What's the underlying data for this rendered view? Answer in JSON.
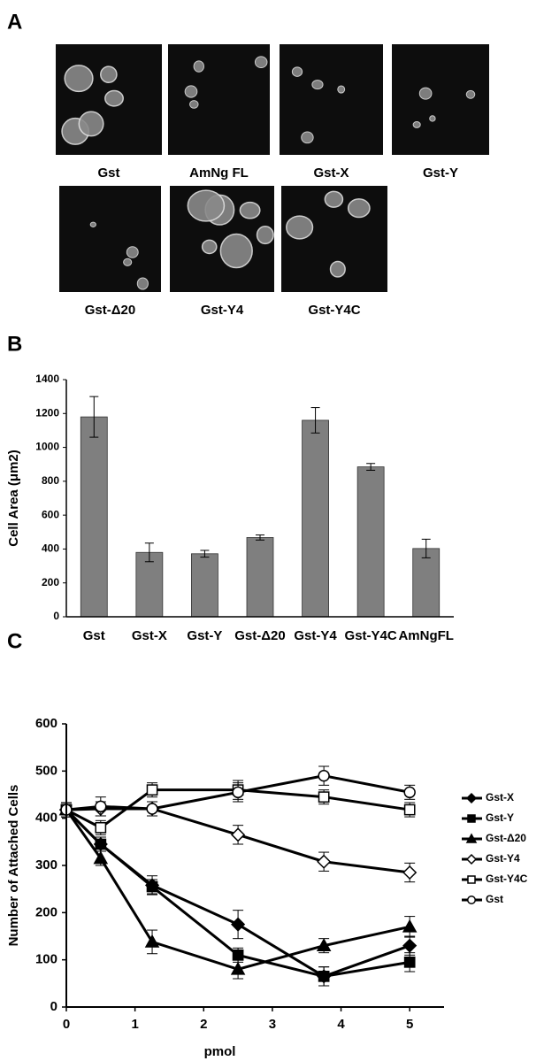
{
  "panel_a": {
    "label": "A",
    "images": [
      "Gst",
      "AmNg FL",
      "Gst-X",
      "Gst-Y",
      "Gst-Δ20",
      "Gst-Y4",
      "Gst-Y4C"
    ]
  },
  "chart_data": [
    {
      "type": "bar",
      "panel_label": "B",
      "y_label": "Cell Area (μm2)",
      "categories": [
        "Gst",
        "Gst-X",
        "Gst-Y",
        "Gst-Δ20",
        "Gst-Y4",
        "Gst-Y4C",
        "AmNgFL"
      ],
      "values": [
        1180,
        380,
        372,
        468,
        1160,
        885,
        403
      ],
      "errors": [
        120,
        55,
        20,
        15,
        75,
        20,
        55
      ],
      "color": "#7f7f7f",
      "ylim": [
        0,
        1400
      ],
      "yticks": [
        0,
        200,
        400,
        600,
        800,
        1000,
        1200,
        1400
      ]
    },
    {
      "type": "line",
      "panel_label": "C",
      "x_label": "pmol",
      "y_label": "Number of Attached Cells",
      "x": [
        0,
        0.5,
        1.25,
        2.5,
        3.75,
        5
      ],
      "xlim": [
        0,
        5.5
      ],
      "xticks": [
        0,
        1,
        2,
        3,
        4,
        5
      ],
      "ylim": [
        0,
        600
      ],
      "yticks": [
        0,
        100,
        200,
        300,
        400,
        500,
        600
      ],
      "series": [
        {
          "name": "Gst-X",
          "color": "#000000",
          "marker": "diamond",
          "filled": true,
          "values": [
            418,
            345,
            258,
            175,
            65,
            130
          ],
          "errors": [
            15,
            15,
            20,
            30,
            20,
            20
          ]
        },
        {
          "name": "Gst-Y",
          "color": "#000000",
          "marker": "square",
          "filled": true,
          "values": [
            418,
            345,
            255,
            110,
            65,
            95
          ],
          "errors": [
            15,
            15,
            15,
            15,
            20,
            20
          ]
        },
        {
          "name": "Gst-Δ20",
          "color": "#000000",
          "marker": "triangle",
          "filled": true,
          "values": [
            418,
            315,
            138,
            80,
            130,
            170
          ],
          "errors": [
            15,
            15,
            25,
            20,
            15,
            22
          ]
        },
        {
          "name": "Gst-Y4",
          "color": "#000000",
          "marker": "diamond",
          "filled": false,
          "values": [
            418,
            420,
            420,
            365,
            308,
            285
          ],
          "errors": [
            15,
            15,
            15,
            20,
            20,
            20
          ]
        },
        {
          "name": "Gst-Y4C",
          "color": "#000000",
          "marker": "square",
          "filled": false,
          "values": [
            418,
            380,
            460,
            460,
            445,
            418
          ],
          "errors": [
            15,
            15,
            15,
            20,
            15,
            15
          ]
        },
        {
          "name": "Gst",
          "color": "#000000",
          "marker": "circle",
          "filled": false,
          "values": [
            418,
            425,
            420,
            455,
            490,
            455
          ],
          "errors": [
            15,
            20,
            15,
            20,
            20,
            15
          ]
        }
      ]
    }
  ]
}
